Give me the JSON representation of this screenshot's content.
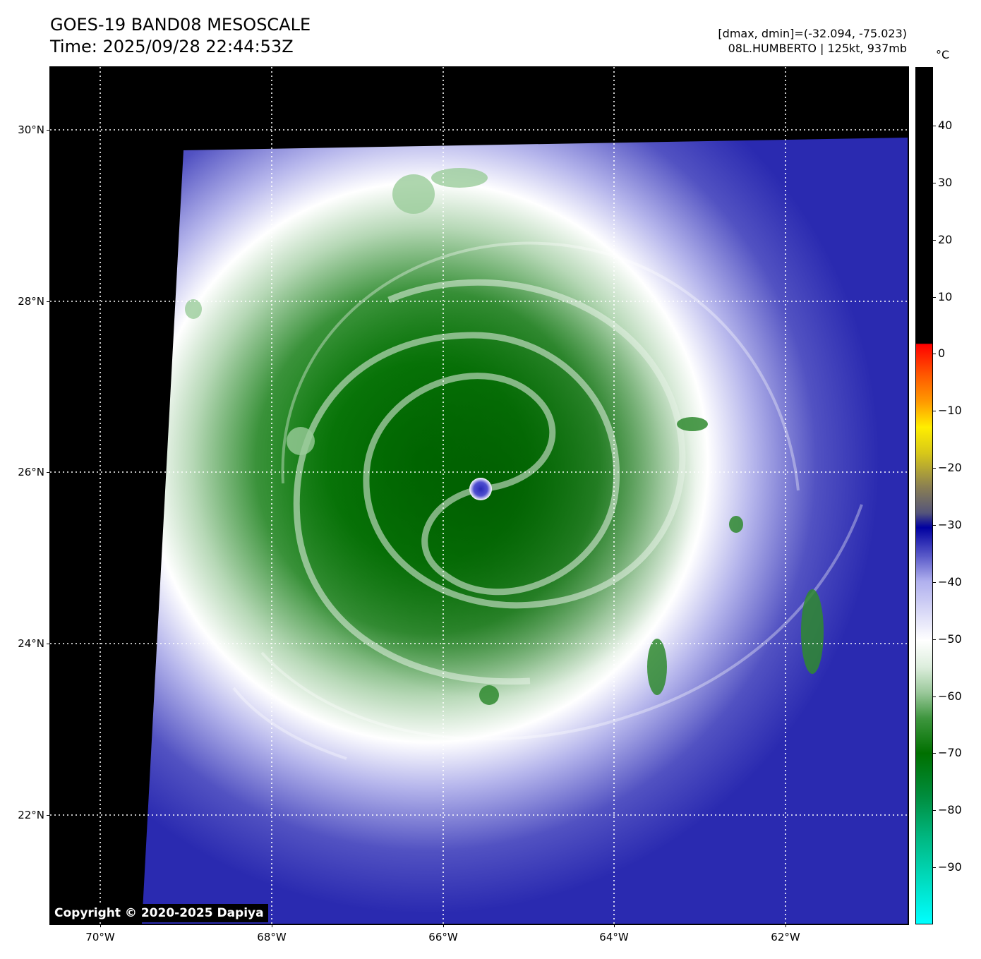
{
  "title": {
    "line1": "GOES-19 BAND08 MESOSCALE",
    "line2": "Time: 2025/09/28 22:44:53Z"
  },
  "info": {
    "range": "[dmax, dmin]=(-32.094, -75.023)",
    "storm": "08L.HUMBERTO | 125kt, 937mb"
  },
  "map": {
    "lat_labels": [
      "30°N",
      "28°N",
      "26°N",
      "24°N",
      "22°N"
    ],
    "lon_labels": [
      "70°W",
      "68°W",
      "66°W",
      "64°W",
      "62°W"
    ],
    "gridlines": "dotted white",
    "storm_eye": {
      "lat": 25.8,
      "lon": -65.55
    }
  },
  "colorbar": {
    "unit": "°C",
    "ticks": [
      "40",
      "30",
      "20",
      "10",
      "0",
      "−10",
      "−20",
      "−30",
      "−40",
      "−50",
      "−60",
      "−70",
      "−80",
      "−90"
    ],
    "colors": {
      "warm": "#000000",
      "very_warm_edge": "#ff0000",
      "yellow": "#ffee00",
      "blue": "#0000a0",
      "white": "#ffffff",
      "green": "#007000",
      "cyan": "#00ffff"
    }
  },
  "copyright": "Copyright © 2020-2025 Dapiya"
}
